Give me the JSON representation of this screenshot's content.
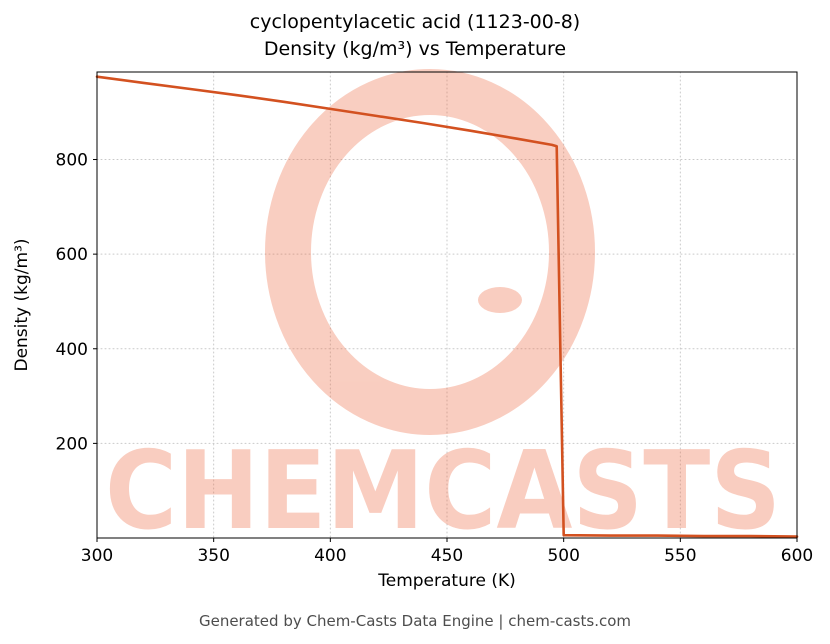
{
  "figure": {
    "title_line1": "cyclopentylacetic acid (1123-00-8)",
    "title_line2": "Density (kg/m³) vs Temperature",
    "footer": "Generated by Chem-Casts Data Engine | chem-casts.com"
  },
  "watermark": {
    "text": "CHEMCASTS",
    "color": "#ee6a43"
  },
  "chart_data": {
    "type": "line",
    "title": "cyclopentylacetic acid (1123-00-8) Density (kg/m³) vs Temperature",
    "xlabel": "Temperature (K)",
    "ylabel": "Density (kg/m³)",
    "xlim": [
      300,
      600
    ],
    "ylim": [
      0,
      985
    ],
    "x_ticks": [
      300,
      350,
      400,
      450,
      500,
      550,
      600
    ],
    "y_ticks": [
      200,
      400,
      600,
      800
    ],
    "grid": true,
    "legend": false,
    "line_color": "#d35120",
    "series": [
      {
        "name": "Density (kg/m³)",
        "x": [
          300,
          320,
          340,
          360,
          380,
          400,
          420,
          440,
          460,
          480,
          495,
          497,
          500,
          520,
          540,
          560,
          580,
          600
        ],
        "y": [
          975,
          962,
          949,
          936,
          922,
          907,
          892,
          877,
          861,
          844,
          831,
          828,
          6,
          5,
          5,
          4,
          4,
          3
        ]
      }
    ]
  }
}
